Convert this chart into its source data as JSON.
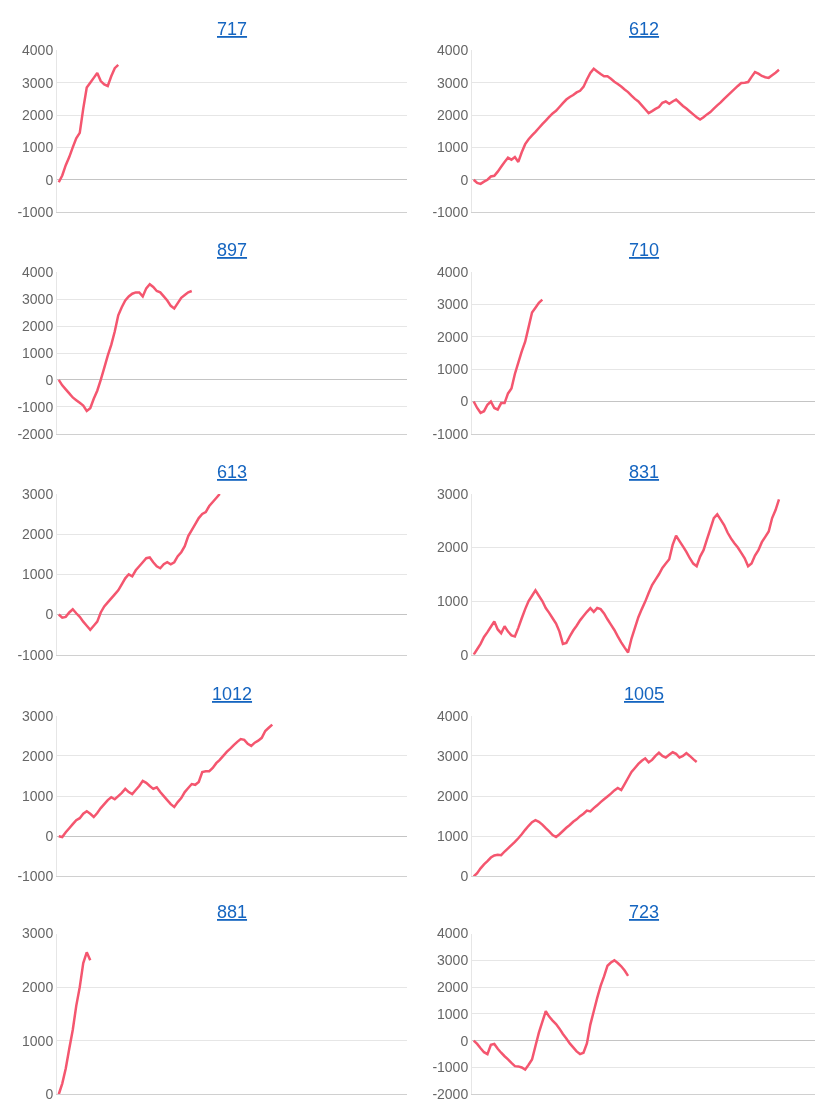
{
  "chart_data": [
    {
      "type": "line",
      "title": "717",
      "categories": [
        null,
        null,
        null,
        null,
        null,
        null,
        null,
        null,
        null,
        null,
        null,
        null,
        null,
        null,
        null,
        null,
        null,
        null,
        null,
        null,
        null,
        null,
        null,
        null,
        null,
        null,
        null,
        null,
        null,
        null,
        null,
        null,
        null,
        null,
        null,
        null,
        null,
        null,
        null,
        null,
        null,
        null,
        null,
        null,
        null,
        null,
        null,
        null,
        null,
        null,
        null,
        null,
        null,
        null,
        null,
        null,
        null,
        null,
        null,
        null,
        null,
        null,
        null,
        null,
        null,
        null,
        null,
        null,
        null,
        null,
        null,
        null,
        null,
        null,
        null,
        null,
        null,
        null,
        null,
        null,
        null,
        null,
        null,
        null,
        null,
        null,
        null,
        null,
        null,
        null,
        null,
        null,
        null,
        null,
        null,
        null,
        null,
        null,
        null,
        null
      ],
      "series": [
        {
          "color": "#f4566f",
          "values": [
            -80,
            130,
            450,
            700,
            1000,
            1280,
            1450,
            2200,
            2850,
            3000,
            3150,
            3300,
            3050,
            2950,
            2900,
            3200,
            3450,
            3550,
            null,
            null,
            null,
            null,
            null,
            null,
            null,
            null,
            null,
            null,
            null,
            null,
            null,
            null,
            null,
            null,
            null,
            null,
            null,
            null,
            null,
            null,
            null,
            null,
            null,
            null,
            null,
            null,
            null,
            null,
            null,
            null,
            null,
            null,
            null,
            null,
            null,
            null,
            null,
            null,
            null,
            null,
            null,
            null,
            null,
            null,
            null,
            null,
            null,
            null,
            null,
            null,
            null,
            null,
            null,
            null,
            null,
            null,
            null,
            null,
            null,
            null,
            null,
            null,
            null,
            null,
            null,
            null,
            null,
            null,
            null,
            null,
            null,
            null,
            null,
            null,
            null,
            null,
            null,
            null,
            null,
            null
          ]
        }
      ],
      "ylim": [
        -1000,
        4000
      ],
      "yticks": [
        -1000,
        0,
        1000,
        2000,
        3000,
        4000
      ],
      "grid": "y",
      "tick_labels": "y"
    },
    {
      "type": "line",
      "title": "612",
      "categories": [
        null,
        null,
        null,
        null,
        null,
        null,
        null,
        null,
        null,
        null,
        null,
        null,
        null,
        null,
        null,
        null,
        null,
        null,
        null,
        null,
        null,
        null,
        null,
        null,
        null,
        null,
        null,
        null,
        null,
        null,
        null,
        null,
        null,
        null,
        null,
        null,
        null,
        null,
        null,
        null,
        null,
        null,
        null,
        null,
        null,
        null,
        null,
        null,
        null,
        null,
        null,
        null,
        null,
        null,
        null,
        null,
        null,
        null,
        null,
        null,
        null,
        null,
        null,
        null,
        null,
        null,
        null,
        null,
        null,
        null,
        null,
        null,
        null,
        null,
        null,
        null,
        null,
        null,
        null,
        null,
        null,
        null,
        null,
        null,
        null,
        null,
        null,
        null,
        null,
        null,
        null,
        null,
        null,
        null,
        null,
        null,
        null,
        null,
        null,
        null
      ],
      "series": [
        {
          "color": "#f4566f",
          "values": [
            0,
            -100,
            -130,
            -60,
            0,
            100,
            120,
            250,
            400,
            550,
            680,
            620,
            700,
            550,
            850,
            1100,
            1250,
            1370,
            1480,
            1600,
            1720,
            1830,
            1940,
            2050,
            2130,
            2250,
            2370,
            2480,
            2560,
            2620,
            2700,
            2750,
            2870,
            3100,
            3300,
            3430,
            3350,
            3270,
            3200,
            3200,
            3120,
            3030,
            2960,
            2880,
            2790,
            2710,
            2600,
            2500,
            2420,
            2300,
            2180,
            2060,
            2120,
            2190,
            2250,
            2380,
            2420,
            2350,
            2420,
            2480,
            2380,
            2280,
            2200,
            2110,
            2020,
            1930,
            1860,
            1930,
            2020,
            2090,
            2200,
            2300,
            2390,
            2500,
            2600,
            2700,
            2800,
            2900,
            2990,
            3000,
            3020,
            3180,
            3330,
            3280,
            3210,
            3170,
            3150,
            3230,
            3310,
            3400,
            null,
            null,
            null,
            null,
            null,
            null,
            null,
            null,
            null,
            null
          ]
        }
      ],
      "ylim": [
        -1000,
        4000
      ],
      "yticks": [
        -1000,
        0,
        1000,
        2000,
        3000,
        4000
      ],
      "grid": "y",
      "tick_labels": "y"
    },
    {
      "type": "line",
      "title": "897",
      "categories": [
        null,
        null,
        null,
        null,
        null,
        null,
        null,
        null,
        null,
        null,
        null,
        null,
        null,
        null,
        null,
        null,
        null,
        null,
        null,
        null,
        null,
        null,
        null,
        null,
        null,
        null,
        null,
        null,
        null,
        null,
        null,
        null,
        null,
        null,
        null,
        null,
        null,
        null,
        null,
        null,
        null,
        null,
        null,
        null,
        null,
        null,
        null,
        null,
        null,
        null,
        null,
        null,
        null,
        null,
        null,
        null,
        null,
        null,
        null,
        null,
        null,
        null,
        null,
        null,
        null,
        null,
        null,
        null,
        null,
        null,
        null,
        null,
        null,
        null,
        null,
        null,
        null,
        null,
        null,
        null,
        null,
        null,
        null,
        null,
        null,
        null,
        null,
        null,
        null,
        null,
        null,
        null,
        null,
        null,
        null,
        null,
        null,
        null,
        null,
        null
      ],
      "series": [
        {
          "color": "#f4566f",
          "values": [
            0,
            -200,
            -350,
            -500,
            -650,
            -750,
            -850,
            -950,
            -1150,
            -1050,
            -700,
            -400,
            0,
            450,
            900,
            1300,
            1800,
            2400,
            2700,
            2950,
            3100,
            3200,
            3250,
            3250,
            3100,
            3400,
            3550,
            3450,
            3300,
            3250,
            3100,
            2950,
            2750,
            2650,
            2850,
            3050,
            3150,
            3250,
            3300,
            null,
            null,
            null,
            null,
            null,
            null,
            null,
            null,
            null,
            null,
            null,
            null,
            null,
            null,
            null,
            null,
            null,
            null,
            null,
            null,
            null,
            null,
            null,
            null,
            null,
            null,
            null,
            null,
            null,
            null,
            null,
            null,
            null,
            null,
            null,
            null,
            null,
            null,
            null,
            null,
            null,
            null,
            null,
            null,
            null,
            null,
            null,
            null,
            null,
            null,
            null,
            null,
            null,
            null,
            null,
            null,
            null,
            null,
            null,
            null,
            null
          ]
        }
      ],
      "ylim": [
        -2000,
        4000
      ],
      "yticks": [
        -2000,
        -1000,
        0,
        1000,
        2000,
        3000,
        4000
      ],
      "grid": "y",
      "tick_labels": "y"
    },
    {
      "type": "line",
      "title": "710",
      "categories": [
        null,
        null,
        null,
        null,
        null,
        null,
        null,
        null,
        null,
        null,
        null,
        null,
        null,
        null,
        null,
        null,
        null,
        null,
        null,
        null,
        null,
        null,
        null,
        null,
        null,
        null,
        null,
        null,
        null,
        null,
        null,
        null,
        null,
        null,
        null,
        null,
        null,
        null,
        null,
        null,
        null,
        null,
        null,
        null,
        null,
        null,
        null,
        null,
        null,
        null,
        null,
        null,
        null,
        null,
        null,
        null,
        null,
        null,
        null,
        null,
        null,
        null,
        null,
        null,
        null,
        null,
        null,
        null,
        null,
        null,
        null,
        null,
        null,
        null,
        null,
        null,
        null,
        null,
        null,
        null,
        null,
        null,
        null,
        null,
        null,
        null,
        null,
        null,
        null,
        null,
        null,
        null,
        null,
        null,
        null,
        null,
        null,
        null,
        null,
        null
      ],
      "series": [
        {
          "color": "#f4566f",
          "values": [
            0,
            -200,
            -350,
            -300,
            -100,
            0,
            -200,
            -250,
            -50,
            -50,
            250,
            400,
            850,
            1200,
            1550,
            1850,
            2300,
            2750,
            2900,
            3050,
            3150,
            null,
            null,
            null,
            null,
            null,
            null,
            null,
            null,
            null,
            null,
            null,
            null,
            null,
            null,
            null,
            null,
            null,
            null,
            null,
            null,
            null,
            null,
            null,
            null,
            null,
            null,
            null,
            null,
            null,
            null,
            null,
            null,
            null,
            null,
            null,
            null,
            null,
            null,
            null,
            null,
            null,
            null,
            null,
            null,
            null,
            null,
            null,
            null,
            null,
            null,
            null,
            null,
            null,
            null,
            null,
            null,
            null,
            null,
            null,
            null,
            null,
            null,
            null,
            null,
            null,
            null,
            null,
            null,
            null,
            null,
            null,
            null,
            null,
            null,
            null,
            null,
            null,
            null,
            null
          ]
        }
      ],
      "ylim": [
        -1000,
        4000
      ],
      "yticks": [
        -1000,
        0,
        1000,
        2000,
        3000,
        4000
      ],
      "grid": "y",
      "tick_labels": "y"
    },
    {
      "type": "line",
      "title": "613",
      "categories": [
        null,
        null,
        null,
        null,
        null,
        null,
        null,
        null,
        null,
        null,
        null,
        null,
        null,
        null,
        null,
        null,
        null,
        null,
        null,
        null,
        null,
        null,
        null,
        null,
        null,
        null,
        null,
        null,
        null,
        null,
        null,
        null,
        null,
        null,
        null,
        null,
        null,
        null,
        null,
        null,
        null,
        null,
        null,
        null,
        null,
        null,
        null,
        null,
        null,
        null,
        null,
        null,
        null,
        null,
        null,
        null,
        null,
        null,
        null,
        null,
        null,
        null,
        null,
        null,
        null,
        null,
        null,
        null,
        null,
        null,
        null,
        null,
        null,
        null,
        null,
        null,
        null,
        null,
        null,
        null,
        null,
        null,
        null,
        null,
        null,
        null,
        null,
        null,
        null,
        null,
        null,
        null,
        null,
        null,
        null,
        null,
        null,
        null,
        null,
        null
      ],
      "series": [
        {
          "color": "#f4566f",
          "values": [
            0,
            -80,
            -60,
            50,
            130,
            30,
            -60,
            -180,
            -280,
            -380,
            -280,
            -180,
            50,
            200,
            300,
            400,
            500,
            600,
            750,
            900,
            1000,
            950,
            1100,
            1200,
            1300,
            1400,
            1420,
            1300,
            1200,
            1150,
            1250,
            1300,
            1250,
            1300,
            1450,
            1550,
            1700,
            1950,
            2100,
            2250,
            2400,
            2500,
            2550,
            2700,
            2800,
            2900,
            3000,
            null,
            null,
            null,
            null,
            null,
            null,
            null,
            null,
            null,
            null,
            null,
            null,
            null,
            null,
            null,
            null,
            null,
            null,
            null,
            null,
            null,
            null,
            null,
            null,
            null,
            null,
            null,
            null,
            null,
            null,
            null,
            null,
            null,
            null,
            null,
            null,
            null,
            null,
            null,
            null,
            null,
            null,
            null,
            null,
            null,
            null,
            null,
            null,
            null,
            null,
            null,
            null,
            null
          ]
        }
      ],
      "ylim": [
        -1000,
        3000
      ],
      "yticks": [
        -1000,
        0,
        1000,
        2000,
        3000
      ],
      "grid": "y",
      "tick_labels": "y"
    },
    {
      "type": "line",
      "title": "831",
      "categories": [
        null,
        null,
        null,
        null,
        null,
        null,
        null,
        null,
        null,
        null,
        null,
        null,
        null,
        null,
        null,
        null,
        null,
        null,
        null,
        null,
        null,
        null,
        null,
        null,
        null,
        null,
        null,
        null,
        null,
        null,
        null,
        null,
        null,
        null,
        null,
        null,
        null,
        null,
        null,
        null,
        null,
        null,
        null,
        null,
        null,
        null,
        null,
        null,
        null,
        null,
        null,
        null,
        null,
        null,
        null,
        null,
        null,
        null,
        null,
        null,
        null,
        null,
        null,
        null,
        null,
        null,
        null,
        null,
        null,
        null,
        null,
        null,
        null,
        null,
        null,
        null,
        null,
        null,
        null,
        null,
        null,
        null,
        null,
        null,
        null,
        null,
        null,
        null,
        null,
        null,
        null,
        null,
        null,
        null,
        null,
        null,
        null,
        null,
        null,
        null
      ],
      "series": [
        {
          "color": "#f4566f",
          "values": [
            0,
            100,
            200,
            330,
            420,
            520,
            620,
            470,
            400,
            530,
            430,
            360,
            340,
            500,
            680,
            850,
            1000,
            1100,
            1200,
            1100,
            1000,
            870,
            780,
            680,
            580,
            430,
            200,
            220,
            340,
            450,
            540,
            640,
            720,
            800,
            870,
            800,
            870,
            850,
            770,
            660,
            560,
            460,
            340,
            230,
            130,
            40,
            300,
            500,
            700,
            850,
            990,
            1150,
            1300,
            1400,
            1500,
            1620,
            1700,
            1780,
            2050,
            2220,
            2120,
            2020,
            1920,
            1800,
            1700,
            1650,
            1830,
            1950,
            2150,
            2350,
            2550,
            2620,
            2520,
            2420,
            2280,
            2170,
            2080,
            2000,
            1900,
            1800,
            1650,
            1700,
            1850,
            1950,
            2100,
            2200,
            2300,
            2550,
            2700,
            2900,
            null,
            null,
            null,
            null,
            null,
            null,
            null,
            null,
            null,
            null
          ]
        }
      ],
      "ylim": [
        0,
        3000
      ],
      "yticks": [
        0,
        1000,
        2000,
        3000
      ],
      "grid": "y",
      "tick_labels": "y"
    },
    {
      "type": "line",
      "title": "1012",
      "categories": [
        null,
        null,
        null,
        null,
        null,
        null,
        null,
        null,
        null,
        null,
        null,
        null,
        null,
        null,
        null,
        null,
        null,
        null,
        null,
        null,
        null,
        null,
        null,
        null,
        null,
        null,
        null,
        null,
        null,
        null,
        null,
        null,
        null,
        null,
        null,
        null,
        null,
        null,
        null,
        null,
        null,
        null,
        null,
        null,
        null,
        null,
        null,
        null,
        null,
        null,
        null,
        null,
        null,
        null,
        null,
        null,
        null,
        null,
        null,
        null,
        null,
        null,
        null,
        null,
        null,
        null,
        null,
        null,
        null,
        null,
        null,
        null,
        null,
        null,
        null,
        null,
        null,
        null,
        null,
        null,
        null,
        null,
        null,
        null,
        null,
        null,
        null,
        null,
        null,
        null,
        null,
        null,
        null,
        null,
        null,
        null,
        null,
        null,
        null,
        null
      ],
      "series": [
        {
          "color": "#f4566f",
          "values": [
            0,
            -20,
            100,
            200,
            300,
            400,
            450,
            560,
            620,
            560,
            480,
            580,
            700,
            800,
            900,
            970,
            920,
            1000,
            1080,
            1180,
            1100,
            1050,
            1150,
            1250,
            1380,
            1330,
            1250,
            1180,
            1220,
            1100,
            1000,
            900,
            800,
            730,
            850,
            950,
            1100,
            1200,
            1300,
            1280,
            1350,
            1600,
            1620,
            1620,
            1700,
            1820,
            1900,
            2000,
            2100,
            2180,
            2270,
            2350,
            2420,
            2400,
            2300,
            2250,
            2330,
            2380,
            2450,
            2620,
            2700,
            2780,
            null,
            null,
            null,
            null,
            null,
            null,
            null,
            null,
            null,
            null,
            null,
            null,
            null,
            null,
            null,
            null,
            null,
            null,
            null,
            null,
            null,
            null,
            null,
            null,
            null,
            null,
            null,
            null,
            null,
            null,
            null,
            null,
            null,
            null,
            null,
            null,
            null,
            null
          ]
        }
      ],
      "ylim": [
        -1000,
        3000
      ],
      "yticks": [
        -1000,
        0,
        1000,
        2000,
        3000
      ],
      "grid": "y",
      "tick_labels": "y"
    },
    {
      "type": "line",
      "title": "1005",
      "categories": [
        null,
        null,
        null,
        null,
        null,
        null,
        null,
        null,
        null,
        null,
        null,
        null,
        null,
        null,
        null,
        null,
        null,
        null,
        null,
        null,
        null,
        null,
        null,
        null,
        null,
        null,
        null,
        null,
        null,
        null,
        null,
        null,
        null,
        null,
        null,
        null,
        null,
        null,
        null,
        null,
        null,
        null,
        null,
        null,
        null,
        null,
        null,
        null,
        null,
        null,
        null,
        null,
        null,
        null,
        null,
        null,
        null,
        null,
        null,
        null,
        null,
        null,
        null,
        null,
        null,
        null,
        null,
        null,
        null,
        null,
        null,
        null,
        null,
        null,
        null,
        null,
        null,
        null,
        null,
        null,
        null,
        null,
        null,
        null,
        null,
        null,
        null,
        null,
        null,
        null,
        null,
        null,
        null,
        null,
        null,
        null,
        null,
        null,
        null,
        null
      ],
      "series": [
        {
          "color": "#f4566f",
          "values": [
            0,
            80,
            200,
            300,
            380,
            470,
            520,
            540,
            530,
            620,
            700,
            780,
            860,
            950,
            1050,
            1160,
            1260,
            1350,
            1400,
            1360,
            1290,
            1200,
            1120,
            1030,
            980,
            1050,
            1130,
            1210,
            1280,
            1360,
            1420,
            1500,
            1560,
            1640,
            1620,
            1700,
            1770,
            1850,
            1920,
            1990,
            2060,
            2140,
            2200,
            2150,
            2300,
            2450,
            2600,
            2700,
            2800,
            2880,
            2940,
            2840,
            2900,
            3000,
            3080,
            3000,
            2960,
            3030,
            3090,
            3050,
            2960,
            3000,
            3070,
            3000,
            2920,
            2850,
            null,
            null,
            null,
            null,
            null,
            null,
            null,
            null,
            null,
            null,
            null,
            null,
            null,
            null,
            null,
            null,
            null,
            null,
            null,
            null,
            null,
            null,
            null,
            null,
            null,
            null,
            null,
            null,
            null,
            null,
            null,
            null,
            null,
            null
          ]
        }
      ],
      "ylim": [
        0,
        4000
      ],
      "yticks": [
        0,
        1000,
        2000,
        3000,
        4000
      ],
      "grid": "y",
      "tick_labels": "y"
    },
    {
      "type": "line",
      "title": "881",
      "categories": [
        null,
        null,
        null,
        null,
        null,
        null,
        null,
        null,
        null,
        null,
        null,
        null,
        null,
        null,
        null,
        null,
        null,
        null,
        null,
        null,
        null,
        null,
        null,
        null,
        null,
        null,
        null,
        null,
        null,
        null,
        null,
        null,
        null,
        null,
        null,
        null,
        null,
        null,
        null,
        null,
        null,
        null,
        null,
        null,
        null,
        null,
        null,
        null,
        null,
        null,
        null,
        null,
        null,
        null,
        null,
        null,
        null,
        null,
        null,
        null,
        null,
        null,
        null,
        null,
        null,
        null,
        null,
        null,
        null,
        null,
        null,
        null,
        null,
        null,
        null,
        null,
        null,
        null,
        null,
        null,
        null,
        null,
        null,
        null,
        null,
        null,
        null,
        null,
        null,
        null,
        null,
        null,
        null,
        null,
        null,
        null,
        null,
        null,
        null,
        null
      ],
      "series": [
        {
          "color": "#f4566f",
          "values": [
            0,
            200,
            480,
            850,
            1200,
            1650,
            2000,
            2450,
            2650,
            2500,
            null,
            null,
            null,
            null,
            null,
            null,
            null,
            null,
            null,
            null,
            null,
            null,
            null,
            null,
            null,
            null,
            null,
            null,
            null,
            null,
            null,
            null,
            null,
            null,
            null,
            null,
            null,
            null,
            null,
            null,
            null,
            null,
            null,
            null,
            null,
            null,
            null,
            null,
            null,
            null,
            null,
            null,
            null,
            null,
            null,
            null,
            null,
            null,
            null,
            null,
            null,
            null,
            null,
            null,
            null,
            null,
            null,
            null,
            null,
            null,
            null,
            null,
            null,
            null,
            null,
            null,
            null,
            null,
            null,
            null,
            null,
            null,
            null,
            null,
            null,
            null,
            null,
            null,
            null,
            null,
            null,
            null,
            null,
            null,
            null,
            null,
            null,
            null,
            null,
            null
          ]
        }
      ],
      "ylim": [
        0,
        3000
      ],
      "yticks": [
        0,
        1000,
        2000,
        3000
      ],
      "grid": "y",
      "tick_labels": "y"
    },
    {
      "type": "line",
      "title": "723",
      "categories": [
        null,
        null,
        null,
        null,
        null,
        null,
        null,
        null,
        null,
        null,
        null,
        null,
        null,
        null,
        null,
        null,
        null,
        null,
        null,
        null,
        null,
        null,
        null,
        null,
        null,
        null,
        null,
        null,
        null,
        null,
        null,
        null,
        null,
        null,
        null,
        null,
        null,
        null,
        null,
        null,
        null,
        null,
        null,
        null,
        null,
        null,
        null,
        null,
        null,
        null,
        null,
        null,
        null,
        null,
        null,
        null,
        null,
        null,
        null,
        null,
        null,
        null,
        null,
        null,
        null,
        null,
        null,
        null,
        null,
        null,
        null,
        null,
        null,
        null,
        null,
        null,
        null,
        null,
        null,
        null,
        null,
        null,
        null,
        null,
        null,
        null,
        null,
        null,
        null,
        null,
        null,
        null,
        null,
        null,
        null,
        null,
        null,
        null,
        null,
        null
      ],
      "series": [
        {
          "color": "#f4566f",
          "values": [
            0,
            -120,
            -280,
            -430,
            -500,
            -150,
            -120,
            -300,
            -450,
            -580,
            -700,
            -830,
            -950,
            -960,
            -1000,
            -1080,
            -900,
            -700,
            -200,
            300,
            700,
            1100,
            900,
            750,
            620,
            450,
            250,
            80,
            -100,
            -250,
            -400,
            -500,
            -450,
            -100,
            600,
            1100,
            1600,
            2050,
            2400,
            2800,
            2920,
            3000,
            2900,
            2780,
            2620,
            2420,
            null,
            null,
            null,
            null,
            null,
            null,
            null,
            null,
            null,
            null,
            null,
            null,
            null,
            null,
            null,
            null,
            null,
            null,
            null,
            null,
            null,
            null,
            null,
            null,
            null,
            null,
            null,
            null,
            null,
            null,
            null,
            null,
            null,
            null,
            null,
            null,
            null,
            null,
            null,
            null,
            null,
            null,
            null,
            null,
            null,
            null,
            null,
            null,
            null,
            null,
            null,
            null,
            null,
            null
          ]
        }
      ],
      "ylim": [
        -2000,
        4000
      ],
      "yticks": [
        -2000,
        -1000,
        0,
        1000,
        2000,
        3000,
        4000
      ],
      "grid": "y",
      "tick_labels": "y"
    }
  ]
}
